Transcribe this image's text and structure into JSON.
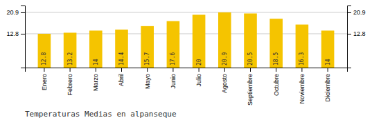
{
  "chart_data": {
    "type": "bar",
    "title": "Temperaturas Medias en alpanseque",
    "categories": [
      "Enero",
      "Febrero",
      "Marzo",
      "Abril",
      "Mayo",
      "Junio",
      "Julio",
      "Agosto",
      "Septiembre",
      "Octubre",
      "Noviembre",
      "Diciembre"
    ],
    "values": [
      12.8,
      13.2,
      14.0,
      14.4,
      15.7,
      17.6,
      20.0,
      20.9,
      20.5,
      18.5,
      16.3,
      14.0
    ],
    "color": "#F5C400",
    "ylim": [
      0.0,
      23.5
    ],
    "yticks": [
      12.8,
      20.9
    ],
    "y2lim": [
      0.0,
      23.5
    ],
    "y2ticks": [
      12.8,
      20.9
    ],
    "grid": true,
    "data_labels": true
  }
}
